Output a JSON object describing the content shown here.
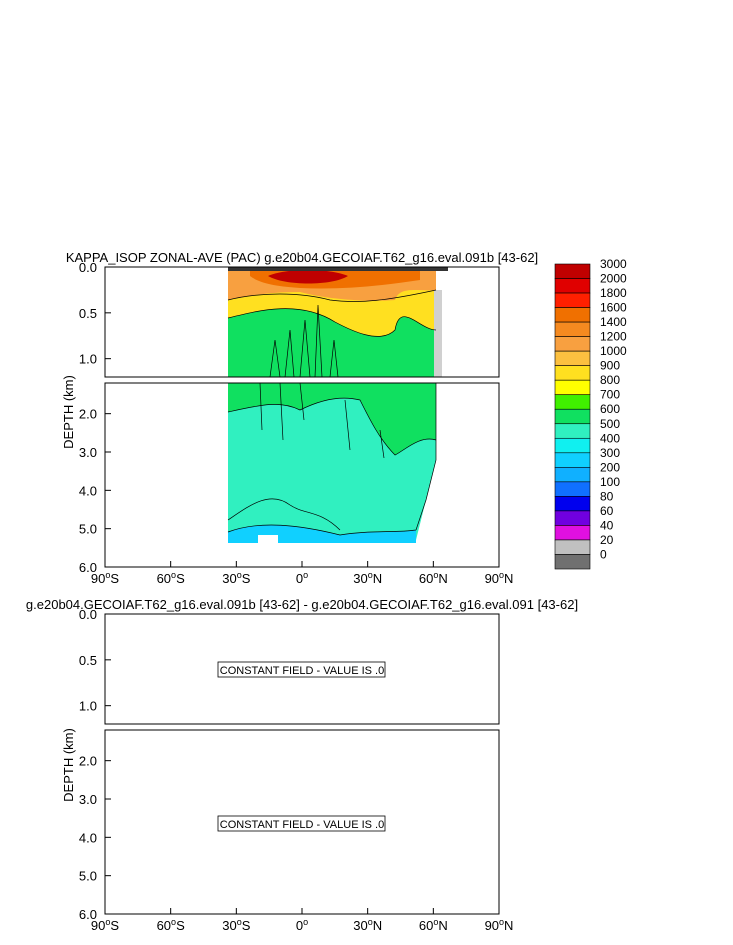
{
  "chart_data": [
    {
      "type": "heatmap",
      "title": "KAPPA_ISOP ZONAL-AVE (PAC) g.e20b04.GECOIAF.T62_g16.eval.091b [43-62]",
      "ylabel": "DEPTH (km)",
      "x_ticks": [
        {
          "value": -90,
          "deg": "90",
          "hemi": "S"
        },
        {
          "value": -60,
          "deg": "60",
          "hemi": "S"
        },
        {
          "value": -30,
          "deg": "30",
          "hemi": "S"
        },
        {
          "value": 0,
          "deg": "0",
          "hemi": ""
        },
        {
          "value": 30,
          "deg": "30",
          "hemi": "N"
        },
        {
          "value": 60,
          "deg": "60",
          "hemi": "N"
        },
        {
          "value": 90,
          "deg": "90",
          "hemi": "N"
        }
      ],
      "xlim": [
        -90,
        90
      ],
      "upper_ylim": [
        0,
        1.2
      ],
      "upper_y_ticks": [
        "0.0",
        "0.5",
        "1.0"
      ],
      "lower_ylim": [
        1.2,
        6.0
      ],
      "lower_y_ticks": [
        "2.0",
        "3.0",
        "4.0",
        "5.0",
        "6.0"
      ],
      "data_extent": {
        "lat_min": -34,
        "lat_max": 67,
        "max_depth_km": 5.4
      },
      "regions": [
        {
          "zone": "surface_core",
          "value_range": [
            2000,
            3000
          ],
          "lat_range": [
            -15,
            15
          ],
          "depth_range_km": [
            0.0,
            0.15
          ]
        },
        {
          "zone": "upper_thermocline",
          "value_range": [
            1200,
            1800
          ],
          "lat_range": [
            -30,
            60
          ],
          "depth_range_km": [
            0.0,
            0.35
          ]
        },
        {
          "zone": "upper_ocean",
          "value_range": [
            800,
            1000
          ],
          "lat_range": [
            -34,
            60
          ],
          "depth_range_km": [
            0.1,
            0.6
          ]
        },
        {
          "zone": "intermediate",
          "value_range": [
            600,
            700
          ],
          "lat_range": [
            -34,
            62
          ],
          "depth_range_km": [
            0.3,
            2.0
          ]
        },
        {
          "zone": "deep",
          "value_range": [
            500,
            600
          ],
          "lat_range": [
            -34,
            62
          ],
          "depth_range_km": [
            1.5,
            5.3
          ]
        },
        {
          "zone": "abyssal",
          "value_range": [
            300,
            400
          ],
          "lat_range": [
            -34,
            52
          ],
          "depth_range_km": [
            5.0,
            5.4
          ]
        }
      ]
    },
    {
      "type": "heatmap",
      "title": "g.e20b04.GECOIAF.T62_g16.eval.091b [43-62] - g.e20b04.GECOIAF.T62_g16.eval.091 [43-62]",
      "ylabel": "DEPTH (km)",
      "xlim": [
        -90,
        90
      ],
      "upper_ylim": [
        0,
        1.2
      ],
      "lower_ylim": [
        1.2,
        6.0
      ],
      "upper_message": "CONSTANT FIELD - VALUE IS .0",
      "lower_message": "CONSTANT FIELD - VALUE IS .0"
    }
  ],
  "colorbar": {
    "labels": [
      "3000",
      "2000",
      "1800",
      "1600",
      "1400",
      "1200",
      "1000",
      "900",
      "800",
      "700",
      "600",
      "500",
      "400",
      "300",
      "200",
      "100",
      "80",
      "60",
      "40",
      "20",
      "0"
    ],
    "colors": [
      "#c00000",
      "#e00000",
      "#ff2000",
      "#f07000",
      "#f58a20",
      "#f8a040",
      "#fcc040",
      "#ffe020",
      "#ffff00",
      "#40f000",
      "#10e060",
      "#30f0c0",
      "#10f0f0",
      "#10d0ff",
      "#10b0ff",
      "#1070ff",
      "#0000ee",
      "#7000e0",
      "#e010e0",
      "#c0c0c0",
      "#707070"
    ]
  }
}
